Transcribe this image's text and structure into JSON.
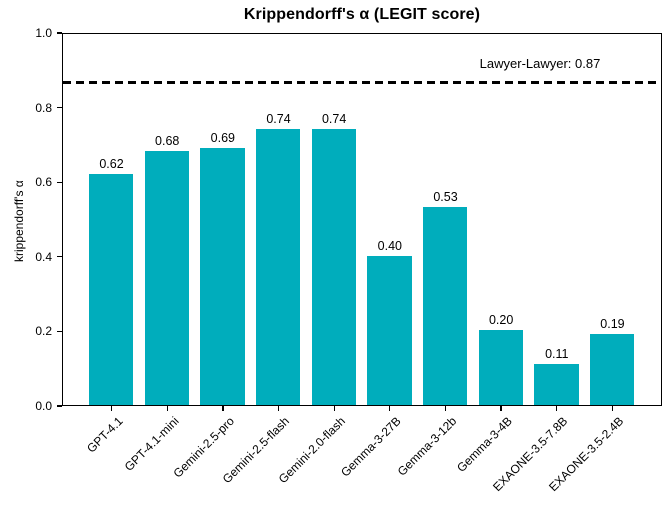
{
  "chart_data": {
    "type": "bar",
    "title": "Krippendorff's α (LEGIT score)",
    "ylabel": "krippendorff's α",
    "xlabel": "",
    "ylim": [
      0.0,
      1.0
    ],
    "yticks": [
      0.0,
      0.2,
      0.4,
      0.6,
      0.8,
      1.0
    ],
    "grid": false,
    "legend": null,
    "categories": [
      "GPT-4.1",
      "GPT-4.1-mini",
      "Gemini-2.5-pro",
      "Gemini-2.5-flash",
      "Gemini-2.0-flash",
      "Gemma-3-27B",
      "Gemma-3-12b",
      "Gemma-3-4B",
      "EXAONE-3.5-7.8B",
      "EXAONE-3.5-2.4B"
    ],
    "values": [
      0.62,
      0.68,
      0.69,
      0.74,
      0.74,
      0.4,
      0.53,
      0.2,
      0.11,
      0.19
    ],
    "value_labels": [
      "0.62",
      "0.68",
      "0.69",
      "0.74",
      "0.74",
      "0.40",
      "0.53",
      "0.20",
      "0.11",
      "0.19"
    ],
    "bar_color": "#00adbc",
    "reference_line": {
      "value": 0.87,
      "label": "Lawyer-Lawyer: 0.87",
      "style": "dashed",
      "color": "#000000"
    }
  }
}
